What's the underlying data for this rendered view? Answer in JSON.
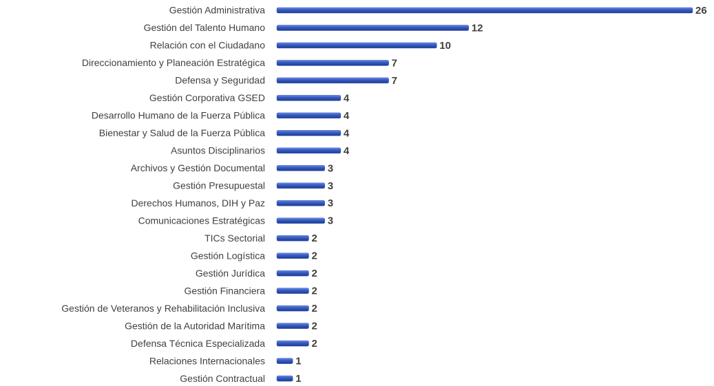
{
  "chart_data": {
    "type": "barh",
    "categories": [
      "Gestión Administrativa",
      "Gestión del Talento Humano",
      "Relación con el Ciudadano",
      "Direccionamiento y Planeación Estratégica",
      "Defensa y Seguridad",
      "Gestión Corporativa GSED",
      "Desarrollo Humano de la Fuerza Pública",
      "Bienestar y Salud de la Fuerza Pública",
      "Asuntos Disciplinarios",
      "Archivos y Gestión Documental",
      "Gestión Presupuestal",
      "Derechos Humanos, DIH y Paz",
      "Comunicaciones Estratégicas",
      "TICs Sectorial",
      "Gestión Logística",
      "Gestión Jurídica",
      "Gestión Financiera",
      "Gestión de Veteranos y Rehabilitación Inclusiva",
      "Gestión de la Autoridad Marítima",
      "Defensa Técnica Especializada",
      "Relaciones Internacionales",
      "Gestión Contractual"
    ],
    "values": [
      26,
      12,
      10,
      7,
      7,
      4,
      4,
      4,
      4,
      3,
      3,
      3,
      3,
      2,
      2,
      2,
      2,
      2,
      2,
      2,
      1,
      1
    ],
    "color": "#3a5fc8"
  }
}
